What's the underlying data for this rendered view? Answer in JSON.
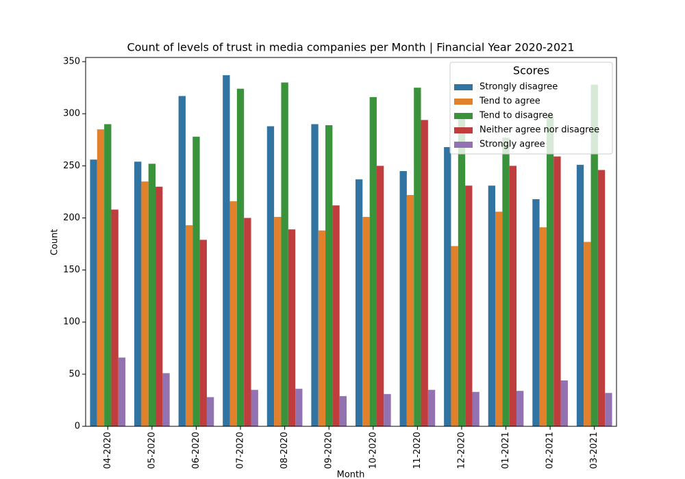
{
  "chart_data": {
    "type": "bar",
    "title": "Count of levels of trust in media companies per Month | Financial Year 2020-2021",
    "x_label": "Month",
    "y_label": "Count",
    "categories": [
      "04-2020",
      "05-2020",
      "06-2020",
      "07-2020",
      "08-2020",
      "09-2020",
      "10-2020",
      "11-2020",
      "12-2020",
      "01-2021",
      "02-2021",
      "03-2021"
    ],
    "series": [
      {
        "name": "Strongly disagree",
        "color": "#3274a1",
        "values": [
          256,
          254,
          317,
          337,
          288,
          290,
          237,
          245,
          268,
          231,
          218,
          251
        ]
      },
      {
        "name": "Tend to agree",
        "color": "#e1812c",
        "values": [
          285,
          235,
          193,
          216,
          201,
          188,
          201,
          222,
          173,
          206,
          191,
          177
        ]
      },
      {
        "name": "Tend to disagree",
        "color": "#3a923a",
        "values": [
          290,
          252,
          278,
          324,
          330,
          289,
          316,
          325,
          300,
          277,
          298,
          328
        ]
      },
      {
        "name": "Neither agree nor disagree",
        "color": "#c03d3e",
        "values": [
          208,
          230,
          179,
          200,
          189,
          212,
          250,
          294,
          231,
          250,
          259,
          246
        ]
      },
      {
        "name": "Strongly agree",
        "color": "#9372b2",
        "values": [
          66,
          51,
          28,
          35,
          36,
          29,
          31,
          35,
          33,
          34,
          44,
          32
        ]
      }
    ],
    "ylim": [
      0,
      354
    ],
    "yticks": [
      0,
      50,
      100,
      150,
      200,
      250,
      300,
      350
    ],
    "legend_title": "Scores",
    "legend_loc": "upper right"
  }
}
